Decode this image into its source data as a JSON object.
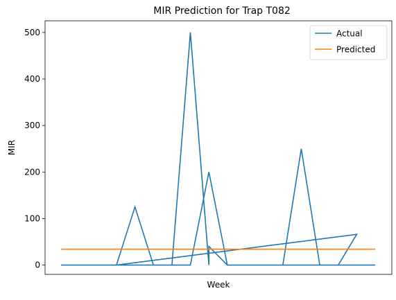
{
  "chart_data": {
    "type": "line",
    "title": "MIR Prediction for Trap T082",
    "xlabel": "Week",
    "ylabel": "MIR",
    "ylim": [
      -20,
      525
    ],
    "yticks": [
      0,
      100,
      200,
      300,
      400,
      500
    ],
    "xticks": [],
    "grid": false,
    "legend_position": "top-right",
    "series": [
      {
        "name": "Actual",
        "color": "#1f77b4",
        "points": [
          [
            0,
            0
          ],
          [
            1,
            0
          ],
          [
            2,
            0
          ],
          [
            3,
            0
          ],
          [
            4,
            125
          ],
          [
            5,
            0
          ],
          [
            6,
            0
          ],
          [
            7,
            500
          ],
          [
            8,
            0
          ],
          [
            8,
            40
          ],
          [
            9,
            0
          ],
          [
            10,
            0
          ],
          [
            11,
            0
          ],
          [
            12,
            0
          ],
          [
            13,
            250
          ],
          [
            14,
            0
          ],
          [
            15,
            0
          ],
          [
            16,
            66
          ],
          [
            3,
            0
          ],
          [
            4,
            0
          ],
          [
            5,
            0
          ],
          [
            6,
            0
          ],
          [
            7,
            0
          ],
          [
            8,
            200
          ],
          [
            9,
            0
          ],
          [
            10,
            0
          ],
          [
            11,
            0
          ],
          [
            12,
            0
          ],
          [
            13,
            0
          ],
          [
            14,
            0
          ],
          [
            15,
            0
          ],
          [
            16,
            0
          ],
          [
            17,
            0
          ]
        ]
      },
      {
        "name": "Predicted",
        "color": "#ff7f0e",
        "points": [
          [
            0,
            34
          ],
          [
            17,
            34
          ]
        ]
      }
    ]
  }
}
